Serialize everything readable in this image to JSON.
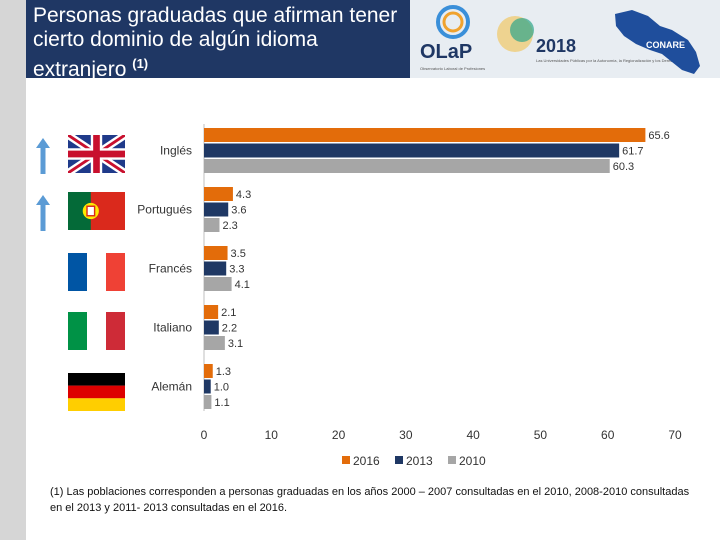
{
  "header": {
    "title_text": "Personas graduadas que afirman tener cierto dominio de algún idioma extranjero",
    "title_sup": "(1)"
  },
  "banner": {
    "olap_label": "OLaP",
    "olap_caption": "Observatorio Laboral de Profesiones",
    "year_label": "2018",
    "year_caption": "Las Universidades Públicas por la Autonomía, la Regionalización y los Derechos Humanos",
    "conare_label": "CONARE"
  },
  "icons": {
    "arrow": "up-arrow-icon",
    "flags": [
      "uk-flag-icon",
      "portugal-flag-icon",
      "france-flag-icon",
      "italy-flag-icon",
      "germany-flag-icon"
    ]
  },
  "colors": {
    "s2016": "#e36c0a",
    "s2013": "#1f3864",
    "s2010": "#a6a6a6",
    "arrow": "#5b9bd5",
    "header_bg": "#1f3764"
  },
  "chart_data": {
    "type": "bar",
    "orientation": "horizontal",
    "categories": [
      "Inglés",
      "Portugués",
      "Francés",
      "Italiano",
      "Alemán"
    ],
    "series": [
      {
        "name": "2016",
        "values": [
          65.6,
          4.3,
          3.5,
          2.1,
          1.3
        ]
      },
      {
        "name": "2013",
        "values": [
          61.7,
          3.6,
          3.3,
          2.2,
          1.0
        ]
      },
      {
        "name": "2010",
        "values": [
          60.3,
          2.3,
          4.1,
          3.1,
          1.1
        ]
      }
    ],
    "xlim": [
      0,
      70
    ],
    "xticks": [
      0,
      10,
      20,
      30,
      40,
      50,
      60,
      70
    ],
    "value_labels": [
      [
        "65.6",
        "61.7",
        "60.3"
      ],
      [
        "4.3",
        "3.6",
        "2.3"
      ],
      [
        "3.5",
        "3.3",
        "4.1"
      ],
      [
        "2.1",
        "2.2",
        "3.1"
      ],
      [
        "1.3",
        "1.0",
        "1.1"
      ]
    ],
    "legend": [
      "2016",
      "2013",
      "2010"
    ],
    "legend_position": "bottom",
    "grid": false
  },
  "footnote": "(1) Las poblaciones corresponden a personas graduadas en los años 2000 – 2007 consultadas en el 2010, 2008-2010 consultadas en el 2013 y 2011- 2013 consultadas en el 2016."
}
